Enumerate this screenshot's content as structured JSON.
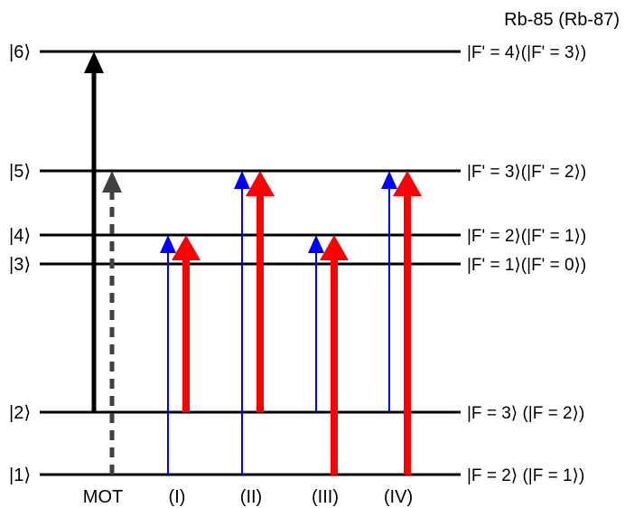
{
  "header": "Rb-85 (Rb-87)",
  "colors": {
    "line": "#000000",
    "mot_repump": "#404040",
    "probe": "#0000ff",
    "coupling": "#ff0000"
  },
  "levels": [
    {
      "id": "6",
      "state": "|6⟩",
      "label": "|F' = 4⟩(|F' = 3⟩)"
    },
    {
      "id": "5",
      "state": "|5⟩",
      "label": "|F' = 3⟩(|F' = 2⟩)"
    },
    {
      "id": "4",
      "state": "|4⟩",
      "label": "|F' = 2⟩(|F' = 1⟩)"
    },
    {
      "id": "3",
      "state": "|3⟩",
      "label": "|F' = 1⟩(|F' = 0⟩)"
    },
    {
      "id": "2",
      "state": "|2⟩",
      "label": "|F = 3⟩ (|F = 2⟩)"
    },
    {
      "id": "1",
      "state": "|1⟩",
      "label": "|F = 2⟩ (|F = 1⟩)"
    }
  ],
  "columns": [
    "MOT",
    "(I)",
    "(II)",
    "(III)",
    "(IV)"
  ],
  "transitions": [
    {
      "column": "MOT",
      "from": "2",
      "to": "6",
      "kind": "mot-cooling",
      "color": "#000000",
      "style": "solid"
    },
    {
      "column": "MOT",
      "from": "1",
      "to": "5",
      "kind": "mot-repump",
      "color": "#404040",
      "style": "dashed"
    },
    {
      "column": "(I)",
      "from": "1",
      "to": "4",
      "kind": "probe",
      "color": "#0000ff",
      "style": "thin"
    },
    {
      "column": "(I)",
      "from": "2",
      "to": "4",
      "kind": "coupling",
      "color": "#ff0000",
      "style": "thick"
    },
    {
      "column": "(II)",
      "from": "1",
      "to": "5",
      "kind": "probe",
      "color": "#0000ff",
      "style": "thin"
    },
    {
      "column": "(II)",
      "from": "2",
      "to": "5",
      "kind": "coupling",
      "color": "#ff0000",
      "style": "thick"
    },
    {
      "column": "(III)",
      "from": "2",
      "to": "4",
      "kind": "probe",
      "color": "#0000ff",
      "style": "thin"
    },
    {
      "column": "(III)",
      "from": "1",
      "to": "4",
      "kind": "coupling",
      "color": "#ff0000",
      "style": "thick"
    },
    {
      "column": "(IV)",
      "from": "2",
      "to": "5",
      "kind": "probe",
      "color": "#0000ff",
      "style": "thin"
    },
    {
      "column": "(IV)",
      "from": "1",
      "to": "5",
      "kind": "coupling",
      "color": "#ff0000",
      "style": "thick"
    }
  ]
}
